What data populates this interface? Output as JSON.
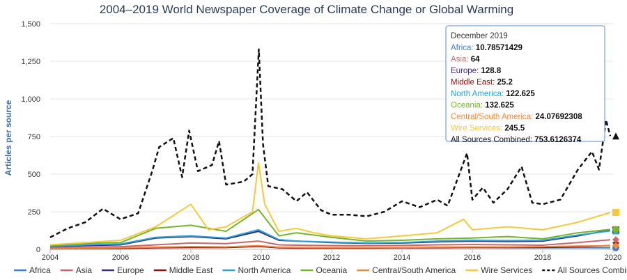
{
  "chart_data": {
    "type": "line",
    "title": "2004–2019 World Newspaper Coverage of Climate Change or Global Warming",
    "xlabel": "",
    "ylabel": "Articles per source",
    "xlim": [
      2004.0,
      2020.0
    ],
    "ylim": [
      0,
      1500
    ],
    "x_ticks": [
      "2004",
      "2006",
      "2008",
      "2010",
      "2012",
      "2014",
      "2016",
      "2018",
      "2020"
    ],
    "y_ticks": [
      "0",
      "250",
      "500",
      "750",
      "1,000",
      "1,250",
      "1,500"
    ],
    "grid": "horizontal",
    "legend_position": "bottom",
    "series": [
      {
        "name": "Africa",
        "color": "#3a7fd0",
        "dash": false,
        "points": [
          [
            2004,
            5
          ],
          [
            2005,
            8
          ],
          [
            2006,
            10
          ],
          [
            2007,
            14
          ],
          [
            2008,
            18
          ],
          [
            2009,
            16
          ],
          [
            2009.92,
            22
          ],
          [
            2010.5,
            14
          ],
          [
            2011,
            12
          ],
          [
            2012,
            11
          ],
          [
            2013,
            10
          ],
          [
            2014,
            10
          ],
          [
            2015,
            11
          ],
          [
            2016,
            12
          ],
          [
            2017,
            11
          ],
          [
            2018,
            10
          ],
          [
            2019,
            11
          ],
          [
            2019.92,
            10.79
          ]
        ]
      },
      {
        "name": "Asia",
        "color": "#c9686b",
        "dash": false,
        "points": [
          [
            2004,
            10
          ],
          [
            2005,
            14
          ],
          [
            2006,
            18
          ],
          [
            2007,
            30
          ],
          [
            2008,
            42
          ],
          [
            2009,
            38
          ],
          [
            2009.92,
            55
          ],
          [
            2010.5,
            30
          ],
          [
            2011,
            28
          ],
          [
            2012,
            25
          ],
          [
            2013,
            24
          ],
          [
            2014,
            26
          ],
          [
            2015,
            30
          ],
          [
            2016,
            32
          ],
          [
            2017,
            30
          ],
          [
            2018,
            28
          ],
          [
            2019,
            45
          ],
          [
            2019.92,
            64
          ]
        ]
      },
      {
        "name": "Europe",
        "color": "#3d2a78",
        "dash": false,
        "points": [
          [
            2004,
            18
          ],
          [
            2005,
            25
          ],
          [
            2006,
            30
          ],
          [
            2007,
            75
          ],
          [
            2008,
            85
          ],
          [
            2009,
            70
          ],
          [
            2009.92,
            120
          ],
          [
            2010.5,
            60
          ],
          [
            2011,
            55
          ],
          [
            2012,
            45
          ],
          [
            2013,
            40
          ],
          [
            2014,
            42
          ],
          [
            2015,
            50
          ],
          [
            2016,
            55
          ],
          [
            2017,
            52
          ],
          [
            2018,
            55
          ],
          [
            2019,
            90
          ],
          [
            2019.92,
            128.8
          ]
        ]
      },
      {
        "name": "Middle East",
        "color": "#8b1111",
        "dash": false,
        "points": [
          [
            2004,
            4
          ],
          [
            2005,
            5
          ],
          [
            2006,
            6
          ],
          [
            2007,
            10
          ],
          [
            2008,
            12
          ],
          [
            2009,
            12
          ],
          [
            2009.92,
            20
          ],
          [
            2010.5,
            10
          ],
          [
            2011,
            9
          ],
          [
            2012,
            9
          ],
          [
            2013,
            9
          ],
          [
            2014,
            10
          ],
          [
            2015,
            11
          ],
          [
            2016,
            12
          ],
          [
            2017,
            12
          ],
          [
            2018,
            13
          ],
          [
            2019,
            18
          ],
          [
            2019.92,
            25.2
          ]
        ]
      },
      {
        "name": "North America",
        "color": "#2aa3d8",
        "dash": false,
        "points": [
          [
            2004,
            20
          ],
          [
            2005,
            30
          ],
          [
            2006,
            35
          ],
          [
            2007,
            80
          ],
          [
            2008,
            90
          ],
          [
            2009,
            75
          ],
          [
            2009.92,
            130
          ],
          [
            2010.5,
            65
          ],
          [
            2011,
            55
          ],
          [
            2012,
            48
          ],
          [
            2013,
            42
          ],
          [
            2014,
            45
          ],
          [
            2015,
            55
          ],
          [
            2016,
            60
          ],
          [
            2017,
            58
          ],
          [
            2018,
            60
          ],
          [
            2019,
            95
          ],
          [
            2019.92,
            122.63
          ]
        ]
      },
      {
        "name": "Oceania",
        "color": "#74b52a",
        "dash": false,
        "points": [
          [
            2004,
            25
          ],
          [
            2005,
            40
          ],
          [
            2006,
            45
          ],
          [
            2007,
            140
          ],
          [
            2008,
            160
          ],
          [
            2009,
            120
          ],
          [
            2009.92,
            265
          ],
          [
            2010.5,
            90
          ],
          [
            2011,
            110
          ],
          [
            2012,
            80
          ],
          [
            2013,
            55
          ],
          [
            2014,
            60
          ],
          [
            2015,
            70
          ],
          [
            2016,
            75
          ],
          [
            2017,
            85
          ],
          [
            2018,
            70
          ],
          [
            2019,
            110
          ],
          [
            2019.92,
            132.63
          ]
        ]
      },
      {
        "name": "Central/South America",
        "color": "#f08a3c",
        "dash": false,
        "points": [
          [
            2004,
            6
          ],
          [
            2005,
            8
          ],
          [
            2006,
            10
          ],
          [
            2007,
            15
          ],
          [
            2008,
            18
          ],
          [
            2009,
            16
          ],
          [
            2009.92,
            25
          ],
          [
            2010.5,
            14
          ],
          [
            2011,
            13
          ],
          [
            2012,
            12
          ],
          [
            2013,
            12
          ],
          [
            2014,
            13
          ],
          [
            2015,
            15
          ],
          [
            2016,
            16
          ],
          [
            2017,
            16
          ],
          [
            2018,
            18
          ],
          [
            2019,
            22
          ],
          [
            2019.92,
            24.08
          ]
        ]
      },
      {
        "name": "Wire Services",
        "color": "#f5c93a",
        "dash": false,
        "points": [
          [
            2004,
            30
          ],
          [
            2005,
            45
          ],
          [
            2006,
            60
          ],
          [
            2007,
            150
          ],
          [
            2008,
            300
          ],
          [
            2008.5,
            130
          ],
          [
            2009,
            150
          ],
          [
            2009.75,
            250
          ],
          [
            2009.92,
            575
          ],
          [
            2010.1,
            300
          ],
          [
            2010.5,
            120
          ],
          [
            2011,
            140
          ],
          [
            2011.5,
            110
          ],
          [
            2012,
            90
          ],
          [
            2013,
            70
          ],
          [
            2014,
            90
          ],
          [
            2015,
            110
          ],
          [
            2015.75,
            200
          ],
          [
            2016,
            130
          ],
          [
            2017,
            150
          ],
          [
            2018,
            130
          ],
          [
            2019,
            180
          ],
          [
            2019.92,
            245.5
          ]
        ]
      },
      {
        "name": "All Sources Combined",
        "color": "#111111",
        "dash": true,
        "points": [
          [
            2004,
            80
          ],
          [
            2004.5,
            140
          ],
          [
            2005,
            180
          ],
          [
            2005.5,
            270
          ],
          [
            2006,
            200
          ],
          [
            2006.5,
            240
          ],
          [
            2006.9,
            520
          ],
          [
            2007.1,
            680
          ],
          [
            2007.5,
            740
          ],
          [
            2007.75,
            480
          ],
          [
            2007.95,
            790
          ],
          [
            2008.2,
            520
          ],
          [
            2008.6,
            560
          ],
          [
            2008.8,
            720
          ],
          [
            2009,
            430
          ],
          [
            2009.5,
            450
          ],
          [
            2009.75,
            500
          ],
          [
            2009.93,
            1330
          ],
          [
            2010.05,
            700
          ],
          [
            2010.2,
            420
          ],
          [
            2010.6,
            400
          ],
          [
            2011,
            320
          ],
          [
            2011.3,
            380
          ],
          [
            2011.7,
            260
          ],
          [
            2012,
            230
          ],
          [
            2012.5,
            230
          ],
          [
            2013,
            220
          ],
          [
            2013.5,
            250
          ],
          [
            2014,
            320
          ],
          [
            2014.5,
            280
          ],
          [
            2015,
            330
          ],
          [
            2015.3,
            290
          ],
          [
            2015.85,
            640
          ],
          [
            2016,
            330
          ],
          [
            2016.3,
            410
          ],
          [
            2016.6,
            310
          ],
          [
            2017,
            400
          ],
          [
            2017.4,
            550
          ],
          [
            2017.7,
            310
          ],
          [
            2018,
            300
          ],
          [
            2018.5,
            330
          ],
          [
            2019,
            530
          ],
          [
            2019.4,
            650
          ],
          [
            2019.6,
            530
          ],
          [
            2019.8,
            860
          ],
          [
            2019.92,
            753.61
          ]
        ]
      }
    ],
    "tooltip": {
      "title": "December 2019",
      "rows": [
        {
          "name": "Africa",
          "value": "10.78571429",
          "color": "#3a7fd0"
        },
        {
          "name": "Asia",
          "value": "64",
          "color": "#c9686b"
        },
        {
          "name": "Europe",
          "value": "128.8",
          "color": "#3d2a78"
        },
        {
          "name": "Middle East",
          "value": "25.2",
          "color": "#8b1111"
        },
        {
          "name": "North America",
          "value": "122.625",
          "color": "#2aa3d8"
        },
        {
          "name": "Oceania",
          "value": "132.625",
          "color": "#74b52a"
        },
        {
          "name": "Central/South America",
          "value": "24.07692308",
          "color": "#f08a3c"
        },
        {
          "name": "Wire Services",
          "value": "245.5",
          "color": "#f5c93a"
        },
        {
          "name": "All Sources Combined",
          "value": "753.6126374",
          "color": "#111111"
        }
      ]
    }
  }
}
